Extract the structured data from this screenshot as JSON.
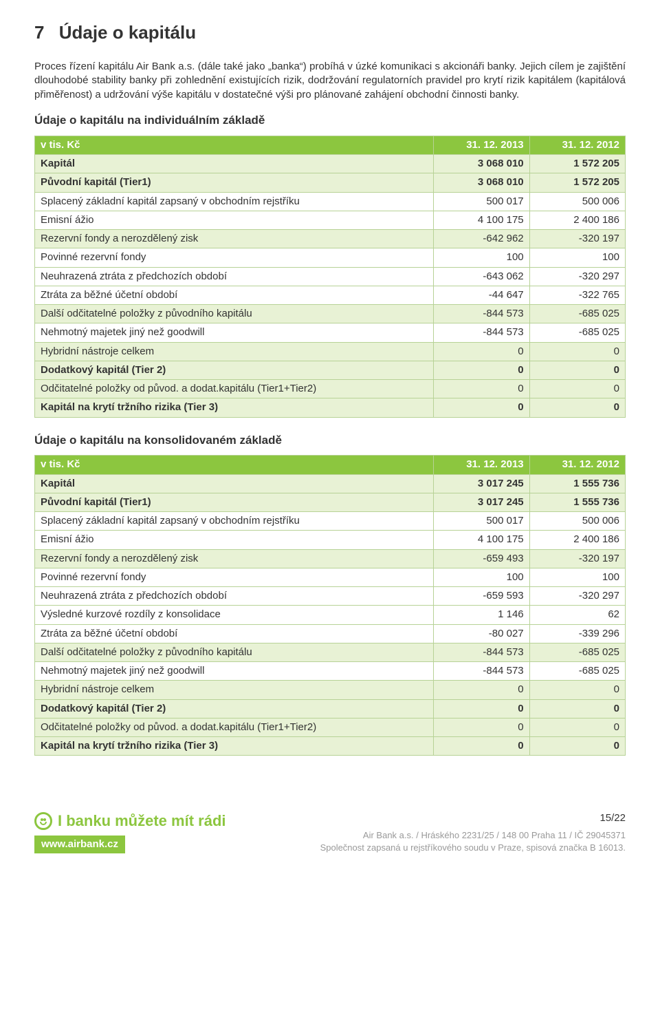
{
  "heading": {
    "number": "7",
    "title": "Údaje o kapitálu"
  },
  "intro": "Proces řízení kapitálu Air Bank a.s. (dále také jako „banka“) probíhá v úzké komunikaci s akcionáři banky. Jejich cílem je zajištění dlouhodobé stability banky při zohlednění existujících rizik, dodržování regulatorních pravidel pro krytí rizik kapitálem (kapitálová přiměřenost) a udržování výše kapitálu v dostatečné výši pro plánované zahájení obchodní činnosti banky.",
  "table1": {
    "title": "Údaje o kapitálu na individuálním základě",
    "header": {
      "c0": "v tis. Kč",
      "c1": "31. 12. 2013",
      "c2": "31. 12. 2012"
    },
    "border_color": "#b7d296",
    "header_bg": "#8cc63f",
    "header_fg": "#ffffff",
    "highlight_bg": "#e8f2d5",
    "rows": [
      {
        "style": "hl",
        "c0": "Kapitál",
        "c1": "3 068 010",
        "c2": "1 572 205"
      },
      {
        "style": "hl",
        "c0": "Původní kapitál (Tier1)",
        "c1": "3 068 010",
        "c2": "1 572 205"
      },
      {
        "style": "plain",
        "c0": "Splacený základní kapitál zapsaný v obchodním rejstříku",
        "c1": "500 017",
        "c2": "500 006"
      },
      {
        "style": "plain",
        "c0": "Emisní ážio",
        "c1": "4 100 175",
        "c2": "2 400 186"
      },
      {
        "style": "hl-sub",
        "c0": "Rezervní fondy a nerozdělený zisk",
        "c1": "-642 962",
        "c2": "-320 197"
      },
      {
        "style": "plain",
        "c0": "Povinné rezervní fondy",
        "c1": "100",
        "c2": "100"
      },
      {
        "style": "plain",
        "c0": "Neuhrazená ztráta z předchozích období",
        "c1": "-643 062",
        "c2": "-320 297"
      },
      {
        "style": "plain",
        "c0": "Ztráta za běžné účetní období",
        "c1": "-44 647",
        "c2": "-322 765"
      },
      {
        "style": "hl-sub",
        "c0": "Další odčitatelné položky z původního kapitálu",
        "c1": "-844 573",
        "c2": "-685 025"
      },
      {
        "style": "plain",
        "c0": "Nehmotný majetek jiný než goodwill",
        "c1": "-844 573",
        "c2": "-685 025"
      },
      {
        "style": "hl-sub",
        "c0": "Hybridní nástroje celkem",
        "c1": "0",
        "c2": "0"
      },
      {
        "style": "hl",
        "c0": "Dodatkový kapitál (Tier 2)",
        "c1": "0",
        "c2": "0"
      },
      {
        "style": "hl-sub",
        "c0": "Odčitatelné položky od původ. a dodat.kapitálu (Tier1+Tier2)",
        "c1": "0",
        "c2": "0"
      },
      {
        "style": "hl",
        "c0": "Kapitál na krytí tržního rizika (Tier 3)",
        "c1": "0",
        "c2": "0"
      }
    ]
  },
  "table2": {
    "title": "Údaje o kapitálu na konsolidovaném základě",
    "header": {
      "c0": "v tis. Kč",
      "c1": "31. 12. 2013",
      "c2": "31. 12. 2012"
    },
    "rows": [
      {
        "style": "hl",
        "c0": "Kapitál",
        "c1": "3 017 245",
        "c2": "1 555 736"
      },
      {
        "style": "hl",
        "c0": "Původní kapitál (Tier1)",
        "c1": "3 017 245",
        "c2": "1 555 736"
      },
      {
        "style": "plain",
        "c0": "Splacený základní kapitál zapsaný v obchodním rejstříku",
        "c1": "500 017",
        "c2": "500 006"
      },
      {
        "style": "plain",
        "c0": "Emisní ážio",
        "c1": "4 100 175",
        "c2": "2 400 186"
      },
      {
        "style": "hl-sub",
        "c0": "Rezervní fondy a nerozdělený zisk",
        "c1": "-659 493",
        "c2": "-320 197"
      },
      {
        "style": "plain",
        "c0": "Povinné rezervní fondy",
        "c1": "100",
        "c2": "100"
      },
      {
        "style": "plain",
        "c0": "Neuhrazená ztráta z předchozích období",
        "c1": "-659 593",
        "c2": "-320 297"
      },
      {
        "style": "plain",
        "c0": "Výsledné kurzové rozdíly z konsolidace",
        "c1": "1 146",
        "c2": "62"
      },
      {
        "style": "plain",
        "c0": "Ztráta za běžné účetní období",
        "c1": "-80 027",
        "c2": "-339 296"
      },
      {
        "style": "hl-sub",
        "c0": "Další odčitatelné položky z původního kapitálu",
        "c1": "-844 573",
        "c2": "-685 025"
      },
      {
        "style": "plain",
        "c0": "Nehmotný majetek jiný než goodwill",
        "c1": "-844 573",
        "c2": "-685 025"
      },
      {
        "style": "hl-sub",
        "c0": "Hybridní nástroje celkem",
        "c1": "0",
        "c2": "0"
      },
      {
        "style": "hl",
        "c0": "Dodatkový kapitál (Tier 2)",
        "c1": "0",
        "c2": "0"
      },
      {
        "style": "hl-sub",
        "c0": "Odčitatelné položky od původ. a dodat.kapitálu (Tier1+Tier2)",
        "c1": "0",
        "c2": "0"
      },
      {
        "style": "hl",
        "c0": "Kapitál na krytí tržního rizika (Tier 3)",
        "c1": "0",
        "c2": "0"
      }
    ]
  },
  "footer": {
    "page": "15/22",
    "brand": "I banku můžete mít rádi",
    "site": "www.airbank.cz",
    "company_line1": "Air Bank a.s. / Hráského 2231/25 / 148 00 Praha 11 / IČ 29045371",
    "company_line2": "Společnost zapsaná u rejstříkového soudu v Praze, spisová značka B 16013."
  },
  "colors": {
    "accent": "#8cc63f",
    "highlight": "#e8f2d5",
    "border": "#b7d296",
    "text": "#333333",
    "muted": "#999999"
  }
}
